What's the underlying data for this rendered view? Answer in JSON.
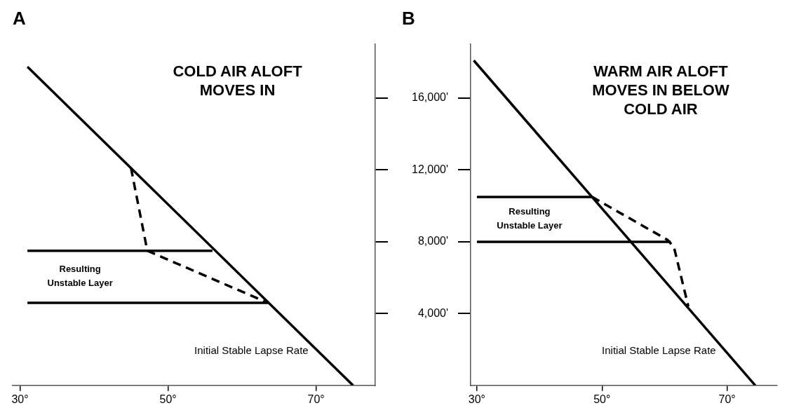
{
  "chart_data": [
    {
      "type": "line",
      "title": "A",
      "subtitle": "COLD AIR ALOFT MOVES IN",
      "xlim": [
        29,
        78
      ],
      "ylim": [
        0,
        19000
      ],
      "xticks": [
        {
          "value": 30,
          "label": "30°"
        },
        {
          "value": 50,
          "label": "50°"
        },
        {
          "value": 70,
          "label": "70°"
        }
      ],
      "yticks": [
        {
          "value": 4000,
          "label": null
        },
        {
          "value": 8000,
          "label": null
        },
        {
          "value": 12000,
          "label": null
        },
        {
          "value": 16000,
          "label": null
        }
      ],
      "tick_labels": "x",
      "grid": false,
      "legend": false,
      "marker": "none",
      "series": [
        {
          "type": "line",
          "color": "#000000",
          "line_style": "solid",
          "x": [
            31,
            75
          ],
          "values": [
            17750,
            0
          ]
        },
        {
          "type": "line",
          "color": "#000000",
          "line_style": "solid",
          "x": [
            31,
            56
          ],
          "values": [
            7500,
            7500
          ]
        },
        {
          "type": "line",
          "color": "#000000",
          "line_style": "solid",
          "x": [
            31,
            63.5
          ],
          "values": [
            4600,
            4600
          ]
        },
        {
          "type": "line",
          "color": "#000000",
          "line_style": "dashed",
          "x": [
            45,
            47.2,
            63.5
          ],
          "values": [
            12100,
            7500,
            4600
          ]
        }
      ],
      "annotations": [
        "Resulting Unstable Layer",
        "Initial Stable Lapse Rate"
      ]
    },
    {
      "type": "line",
      "title": "B",
      "subtitle": "WARM AIR ALOFT MOVES IN BELOW COLD AIR",
      "xlim": [
        29,
        78
      ],
      "ylim": [
        0,
        19000
      ],
      "xticks": [
        {
          "value": 30,
          "label": "30°"
        },
        {
          "value": 50,
          "label": "50°"
        },
        {
          "value": 70,
          "label": "70°"
        }
      ],
      "yticks": [
        {
          "value": 4000,
          "label": "4,000'"
        },
        {
          "value": 8000,
          "label": "8,000'"
        },
        {
          "value": 12000,
          "label": "12,000'"
        },
        {
          "value": 16000,
          "label": "16,000'"
        }
      ],
      "grid": false,
      "legend": false,
      "marker": "none",
      "series": [
        {
          "type": "line",
          "color": "#000000",
          "line_style": "solid",
          "x": [
            29.5,
            74.5
          ],
          "values": [
            18100,
            0
          ]
        },
        {
          "type": "line",
          "color": "#000000",
          "line_style": "solid",
          "x": [
            30,
            48.4
          ],
          "values": [
            10500,
            10500
          ]
        },
        {
          "type": "line",
          "color": "#000000",
          "line_style": "solid",
          "x": [
            30,
            61
          ],
          "values": [
            8000,
            8000
          ]
        },
        {
          "type": "line",
          "color": "#000000",
          "line_style": "dashed",
          "x": [
            48.4,
            60.5,
            61.5,
            63.8
          ],
          "values": [
            10500,
            8100,
            7700,
            4400
          ]
        }
      ],
      "annotations": [
        "Resulting Unstable Layer",
        "Initial Stable Lapse Rate"
      ]
    }
  ]
}
